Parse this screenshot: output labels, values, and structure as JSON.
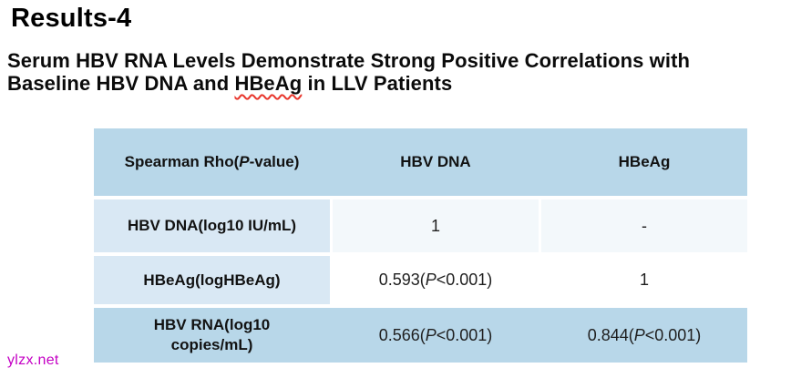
{
  "slide": {
    "title": "Results-4",
    "subtitle": {
      "line1": "Serum HBV RNA Levels Demonstrate Strong Positive Correlations with",
      "line2_pre": "Baseline HBV DNA and ",
      "line2_underlined": "HBeAg",
      "line2_post": " in LLV Patients"
    },
    "watermark": "ylzx.net"
  },
  "table": {
    "header": {
      "spearman_pre": "Spearman Rho(",
      "spearman_p": "P",
      "spearman_post": "-value)",
      "col_hbv_dna": "HBV DNA",
      "col_hbeag": "HBeAg"
    },
    "row_hbv_dna": {
      "label": "HBV DNA(log10 IU/mL)",
      "hbv_dna": "1",
      "hbeag": "-"
    },
    "row_hbeag": {
      "label": "HBeAg(logHBeAg)",
      "hbv_dna_pre": "0.593(",
      "hbv_dna_p": "P",
      "hbv_dna_post": "<0.001)",
      "hbeag": "1"
    },
    "row_hbv_rna": {
      "label_line1": "HBV RNA(log10",
      "label_line2": "copies/mL)",
      "hbv_dna_pre": "0.566(",
      "hbv_dna_p": "P",
      "hbv_dna_post": "<0.001)",
      "hbeag_pre": "0.844(",
      "hbeag_p": "P",
      "hbeag_post": "<0.001)"
    }
  },
  "chart_data": {
    "type": "table",
    "title": "Spearman Rho(P-value)",
    "columns": [
      "Spearman Rho(P-value)",
      "HBV DNA",
      "HBeAg"
    ],
    "rows": [
      [
        "HBV DNA(log10 IU/mL)",
        "1",
        "-"
      ],
      [
        "HBeAg(logHBeAg)",
        "0.593(P<0.001)",
        "1"
      ],
      [
        "HBV RNA(log10 copies/mL)",
        "0.566(P<0.001)",
        "0.844(P<0.001)"
      ]
    ]
  },
  "colors": {
    "header_blue": "#b8d7e9",
    "label_blue": "#d9e8f4",
    "row1_tint": "#f3f8fb",
    "row2_white": "#ffffff",
    "watermark_magenta": "#c400c4",
    "squiggle_red": "#e8362c"
  }
}
